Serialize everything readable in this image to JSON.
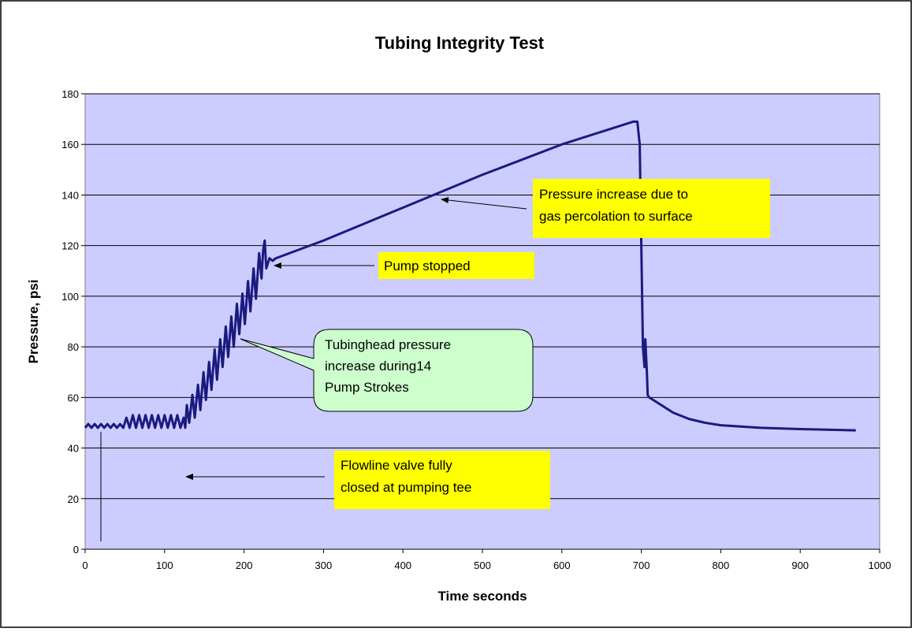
{
  "chart_data": {
    "type": "line",
    "title": "Tubing Integrity Test",
    "x_label": "Time seconds",
    "y_label": "Pressure, psi",
    "x": [
      0,
      4,
      8,
      12,
      16,
      20,
      24,
      28,
      32,
      36,
      40,
      44,
      48,
      52,
      56,
      60,
      64,
      68,
      72,
      76,
      80,
      84,
      88,
      92,
      96,
      100,
      104,
      108,
      112,
      116,
      120,
      124,
      126,
      128,
      131,
      135,
      138,
      142,
      145,
      149,
      152,
      156,
      159,
      163,
      166,
      170,
      173,
      177,
      180,
      184,
      187,
      191,
      194,
      198,
      201,
      205,
      208,
      212,
      215,
      219,
      222,
      224,
      226,
      228,
      232,
      236,
      240,
      300,
      400,
      500,
      600,
      650,
      690,
      695,
      698,
      700,
      702,
      704,
      705,
      707,
      708,
      710,
      720,
      740,
      760,
      780,
      800,
      850,
      900,
      970
    ],
    "series": [
      {
        "name": "Pressure",
        "color": "#1a1a80",
        "values": [
          48,
          49.5,
          48,
          49.5,
          48,
          49.5,
          48,
          49.5,
          48,
          49.5,
          48,
          49.5,
          48,
          52,
          48,
          53,
          48,
          53,
          48,
          53,
          48,
          53,
          48,
          53,
          48,
          53,
          48,
          53,
          48,
          53,
          48,
          52,
          48,
          57,
          50,
          61,
          52,
          65,
          55,
          70,
          59,
          74,
          63,
          79,
          67,
          83,
          72,
          88,
          76,
          92,
          80,
          97,
          85,
          101,
          89,
          106,
          94,
          111,
          99,
          117,
          107,
          118,
          122,
          111,
          115,
          114,
          115,
          122,
          135,
          148,
          160,
          165,
          169,
          169,
          160,
          120,
          80,
          72,
          83,
          70,
          61,
          60,
          58,
          54,
          51.5,
          50,
          49,
          48,
          47.5,
          47
        ]
      }
    ],
    "xlim": [
      0,
      1000
    ],
    "xticks": [
      0,
      100,
      200,
      300,
      400,
      500,
      600,
      700,
      800,
      900,
      1000
    ],
    "ylim": [
      0,
      180
    ],
    "yticks": [
      0,
      20,
      40,
      60,
      80,
      100,
      120,
      140,
      160,
      180
    ],
    "grid": true,
    "annotations": [
      {
        "lines": [
          "Pressure increase due to",
          "gas percolation to surface"
        ]
      },
      {
        "lines": [
          "Pump stopped"
        ]
      },
      {
        "lines": [
          "Tubinghead pressure",
          "increase during14",
          "Pump Strokes"
        ]
      },
      {
        "lines": [
          "Flowline valve fully",
          "closed at pumping tee"
        ]
      }
    ]
  }
}
